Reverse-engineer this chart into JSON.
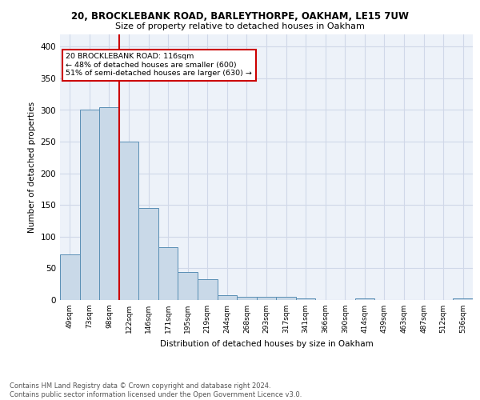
{
  "title1": "20, BROCKLEBANK ROAD, BARLEYTHORPE, OAKHAM, LE15 7UW",
  "title2": "Size of property relative to detached houses in Oakham",
  "xlabel": "Distribution of detached houses by size in Oakham",
  "ylabel": "Number of detached properties",
  "categories": [
    "49sqm",
    "73sqm",
    "98sqm",
    "122sqm",
    "146sqm",
    "171sqm",
    "195sqm",
    "219sqm",
    "244sqm",
    "268sqm",
    "293sqm",
    "317sqm",
    "341sqm",
    "366sqm",
    "390sqm",
    "414sqm",
    "439sqm",
    "463sqm",
    "487sqm",
    "512sqm",
    "536sqm"
  ],
  "values": [
    72,
    300,
    305,
    250,
    145,
    83,
    44,
    33,
    8,
    5,
    5,
    5,
    2,
    0,
    0,
    3,
    0,
    0,
    0,
    0,
    3
  ],
  "bar_color": "#c9d9e8",
  "bar_edge_color": "#5a8fb5",
  "vline_x": 2.5,
  "vline_color": "#cc0000",
  "annotation_text": "20 BROCKLEBANK ROAD: 116sqm\n← 48% of detached houses are smaller (600)\n51% of semi-detached houses are larger (630) →",
  "annotation_box_color": "white",
  "annotation_box_edge": "#cc0000",
  "ylim": [
    0,
    420
  ],
  "yticks": [
    0,
    50,
    100,
    150,
    200,
    250,
    300,
    350,
    400
  ],
  "grid_color": "#d0d8e8",
  "footer": "Contains HM Land Registry data © Crown copyright and database right 2024.\nContains public sector information licensed under the Open Government Licence v3.0.",
  "bg_color": "#edf2f9"
}
